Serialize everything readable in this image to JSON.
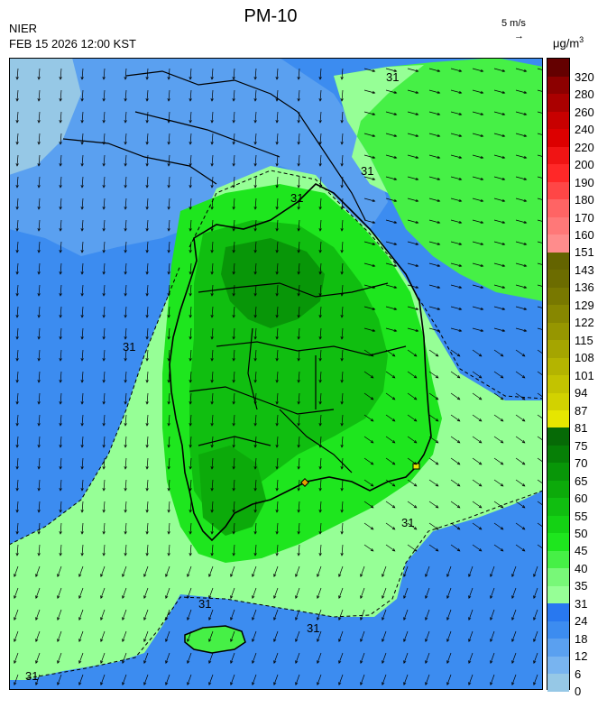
{
  "header": {
    "title": "PM-10",
    "organization": "NIER",
    "timestamp": "FEB 15 2026 12:00 KST",
    "wind_reference": "5 m/s",
    "wind_arrow": "→",
    "unit_base": "μg/m",
    "unit_exp": "3"
  },
  "contour_label": "31",
  "legend": {
    "levels": [
      "0",
      "6",
      "12",
      "18",
      "24",
      "31",
      "35",
      "40",
      "45",
      "50",
      "55",
      "60",
      "65",
      "70",
      "75",
      "81",
      "87",
      "94",
      "101",
      "108",
      "115",
      "122",
      "129",
      "136",
      "143",
      "151",
      "160",
      "170",
      "180",
      "190",
      "200",
      "220",
      "240",
      "260",
      "280",
      "320"
    ],
    "colors": [
      "#96c8e6",
      "#78b4f0",
      "#5aa0f0",
      "#3c8cf0",
      "#2878f0",
      "#96ff96",
      "#78f878",
      "#46f046",
      "#1ee61e",
      "#14d214",
      "#10be10",
      "#0caa0a",
      "#089608",
      "#067f06",
      "#066a06",
      "#e6e600",
      "#d2d200",
      "#c3c300",
      "#b4b400",
      "#a5a500",
      "#969600",
      "#878700",
      "#787800",
      "#6c6c00",
      "#646400",
      "#ff8c8c",
      "#ff7878",
      "#ff6464",
      "#ff4646",
      "#ff2828",
      "#f01414",
      "#dc0000",
      "#c80000",
      "#aa0000",
      "#8c0000",
      "#640000"
    ]
  }
}
